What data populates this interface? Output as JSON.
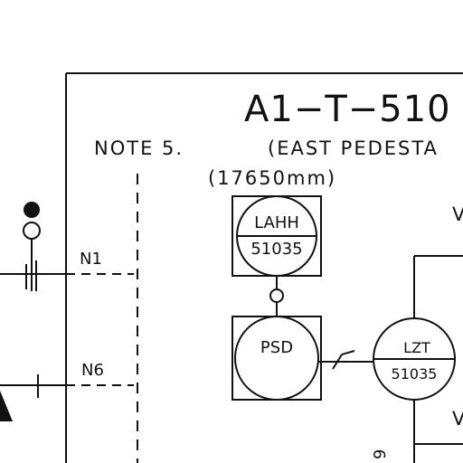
{
  "title": "A1−T−510",
  "note_label": "NOTE 5.",
  "location_label": "(EAST PEDESTA",
  "dimension_label": "(17650mm)",
  "nozzles": [
    "N1",
    "N6"
  ],
  "instruments": [
    {
      "line1": "LAHH",
      "line2": "51035"
    },
    {
      "line1": "PSD",
      "line2": ""
    },
    {
      "line1": "LZT",
      "line2": "51035"
    }
  ],
  "right_labels": [
    "V",
    "V"
  ],
  "side_digit": "9",
  "colors": {
    "ink": "#111111",
    "background": "#ffffff"
  }
}
